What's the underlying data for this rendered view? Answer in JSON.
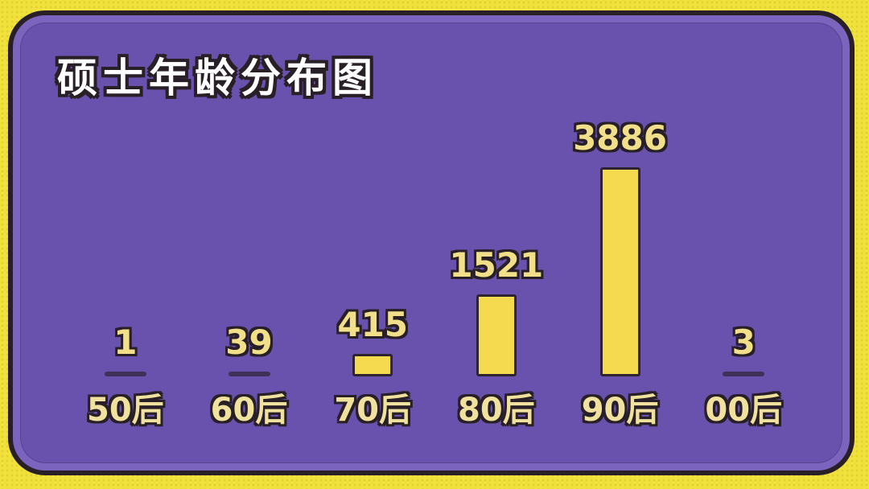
{
  "chart_data": {
    "type": "bar",
    "title": "硕士年龄分布图",
    "categories": [
      "50后",
      "60后",
      "70后",
      "80后",
      "90后",
      "00后"
    ],
    "values": [
      1,
      39,
      415,
      1521,
      3886,
      3
    ],
    "xlabel": "",
    "ylabel": "",
    "ylim": [
      0,
      4200
    ],
    "grid": false,
    "legend": null,
    "value_labels_position": "above bars",
    "note": "values too small to draw are shown as short dark dashes at the baseline"
  },
  "style": {
    "frame_color": "#f0e13c",
    "frame_dot_color": "#e2d22e",
    "outline_ink": "#281f27",
    "panel_rim_color": "#7a64bd",
    "panel_color": "#6952ad",
    "bar_fill": "#f5d94e",
    "bar_outline": "#2e2430",
    "dash_color": "#3d3158",
    "title_color": "#ffffff",
    "value_text_color": "#f2df8a",
    "category_text_color": "#f0e29e"
  }
}
